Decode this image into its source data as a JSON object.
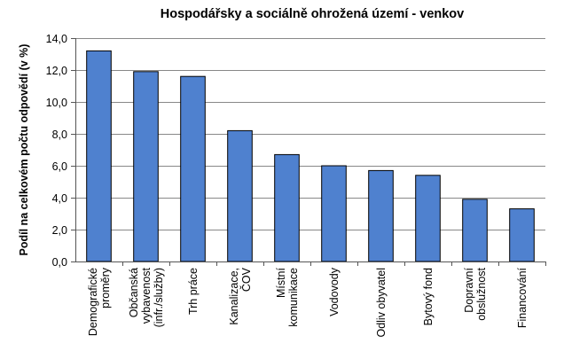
{
  "chart_data": {
    "type": "bar",
    "title": "Hospodářsky a sociálně ohrožená území - venkov",
    "xlabel": "",
    "ylabel": "Podíl na celkovém počtu odpovědí (v %)",
    "ylim": [
      0,
      14
    ],
    "ytick_step": 2,
    "ytick_labels": [
      "0,0",
      "2,0",
      "4,0",
      "6,0",
      "8,0",
      "10,0",
      "12,0",
      "14,0"
    ],
    "grid": true,
    "categories": [
      [
        "Demografické",
        "proměry"
      ],
      [
        "Občanská",
        "vybavenost",
        "(infr./služby)"
      ],
      [
        "Trh práce"
      ],
      [
        "Kanalizace,",
        "ČOV"
      ],
      [
        "Místní",
        "komunikace"
      ],
      [
        "Vodovody"
      ],
      [
        "Odliv obyvatel"
      ],
      [
        "Bytový fond"
      ],
      [
        "Dopravní",
        "obslužnost"
      ],
      [
        "Financování"
      ]
    ],
    "values": [
      13.2,
      11.9,
      11.6,
      8.2,
      6.7,
      6.0,
      5.7,
      5.4,
      3.9,
      3.3
    ],
    "colors": {
      "bar": "#4f81cf",
      "bar_stroke": "#000000",
      "grid": "#888888",
      "axis": "#555555"
    }
  }
}
